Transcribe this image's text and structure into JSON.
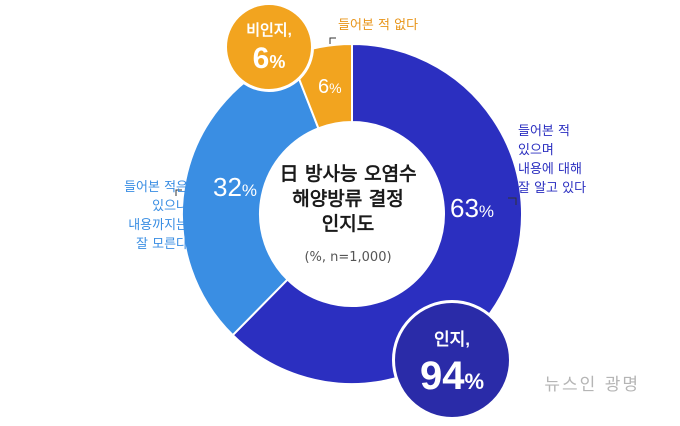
{
  "colors": {
    "aware": "#2b2fc0",
    "partial": "#3a8ee3",
    "never": "#f2a41f",
    "aware_badge": "#2a2ba8"
  },
  "chart_data": {
    "type": "pie",
    "title": [
      "日 방사능 오염수",
      "해양방류 결정",
      "인지도"
    ],
    "note": "(%, n=1,000)",
    "slices": [
      {
        "key": "aware",
        "label": [
          "들어본 적",
          "있으며",
          "내용에 대해",
          "잘 알고 있다"
        ],
        "value": 63
      },
      {
        "key": "partial",
        "label": [
          "들어본 적은",
          "있으나",
          "내용까지는",
          "잘 모른다"
        ],
        "value": 32
      },
      {
        "key": "never",
        "label": [
          "들어본 적 없다"
        ],
        "value": 6
      }
    ],
    "summary": {
      "awareness": {
        "label": "인지,",
        "value": "94",
        "unit": "%"
      },
      "unawareness": {
        "label": "비인지,",
        "value": "6",
        "unit": "%"
      }
    }
  },
  "unit": "%",
  "watermark": "뉴스인 광명"
}
